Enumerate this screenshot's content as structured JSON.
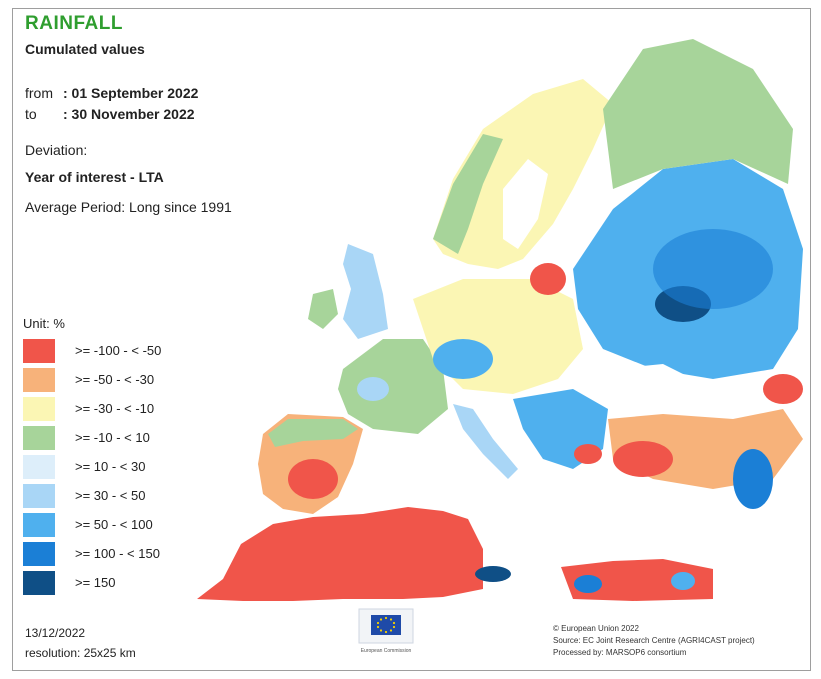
{
  "title": "RAINFALL",
  "subtitle": "Cumulated values",
  "period": {
    "from_label": "from",
    "from_value": ": 01 September 2022",
    "to_label": "to",
    "to_value": ": 30 November 2022"
  },
  "deviation_label": "Deviation:",
  "deviation_type": "Year of interest - LTA",
  "average_period": "Average Period: Long since 1991",
  "legend": {
    "unit": "Unit: %",
    "classes": [
      {
        "label": ">= -100 - < -50",
        "color": "#f0554a"
      },
      {
        "label": ">= -50 - < -30",
        "color": "#f7b27a"
      },
      {
        "label": ">= -30 - < -10",
        "color": "#fbf6b4"
      },
      {
        "label": ">= -10 - < 10",
        "color": "#a7d49a"
      },
      {
        "label": ">= 10 - < 30",
        "color": "#ddeefa"
      },
      {
        "label": ">= 30 - < 50",
        "color": "#a9d6f6"
      },
      {
        "label": ">= 50 - < 100",
        "color": "#4fb0ee"
      },
      {
        "label": ">= 100 - < 150",
        "color": "#1b7fd6"
      },
      {
        "label": ">= 150",
        "color": "#0f4f86"
      }
    ]
  },
  "date": "13/12/2022",
  "resolution": "resolution: 25x25 km",
  "logo": {
    "text": "European Commission",
    "icon": "eu-flag-icon"
  },
  "credits": {
    "line1": "© European Union 2022",
    "line2": "Source: EC Joint Research Centre (AGRI4CAST project)",
    "line3": "Processed by: MARSOP6 consortium"
  },
  "colors": {
    "title": "#2f9e2f",
    "border": "#9e9e9e"
  }
}
